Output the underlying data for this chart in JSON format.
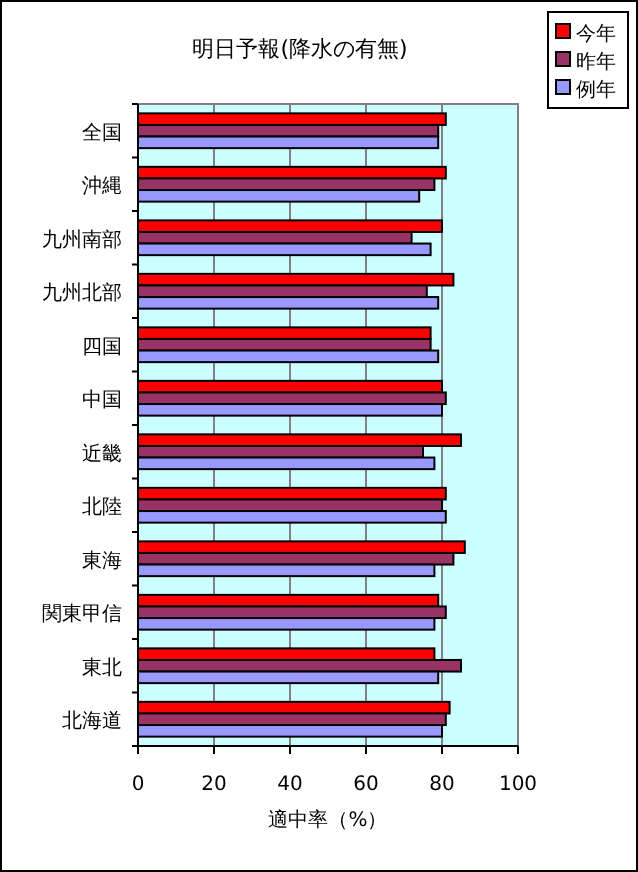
{
  "chart_data": {
    "type": "bar",
    "orientation": "horizontal",
    "title": "明日予報(降水の有無)",
    "xlabel": "適中率（%）",
    "categories": [
      "全国",
      "沖縄",
      "九州南部",
      "九州北部",
      "四国",
      "中国",
      "近畿",
      "北陸",
      "東海",
      "関東甲信",
      "東北",
      "北海道"
    ],
    "series": [
      {
        "name": "今年",
        "color": "#ff0000",
        "values": [
          81,
          81,
          80,
          83,
          77,
          80,
          85,
          81,
          86,
          79,
          78,
          82
        ]
      },
      {
        "name": "昨年",
        "color": "#993366",
        "values": [
          79,
          78,
          72,
          76,
          77,
          81,
          75,
          80,
          83,
          81,
          85,
          81
        ]
      },
      {
        "name": "例年",
        "color": "#9999ff",
        "values": [
          79,
          74,
          77,
          79,
          79,
          80,
          78,
          81,
          78,
          78,
          79,
          80
        ]
      }
    ],
    "xlim": [
      0,
      100
    ],
    "xticks": [
      0,
      20,
      40,
      60,
      80,
      100
    ],
    "grid": "x",
    "legend": "top right"
  }
}
